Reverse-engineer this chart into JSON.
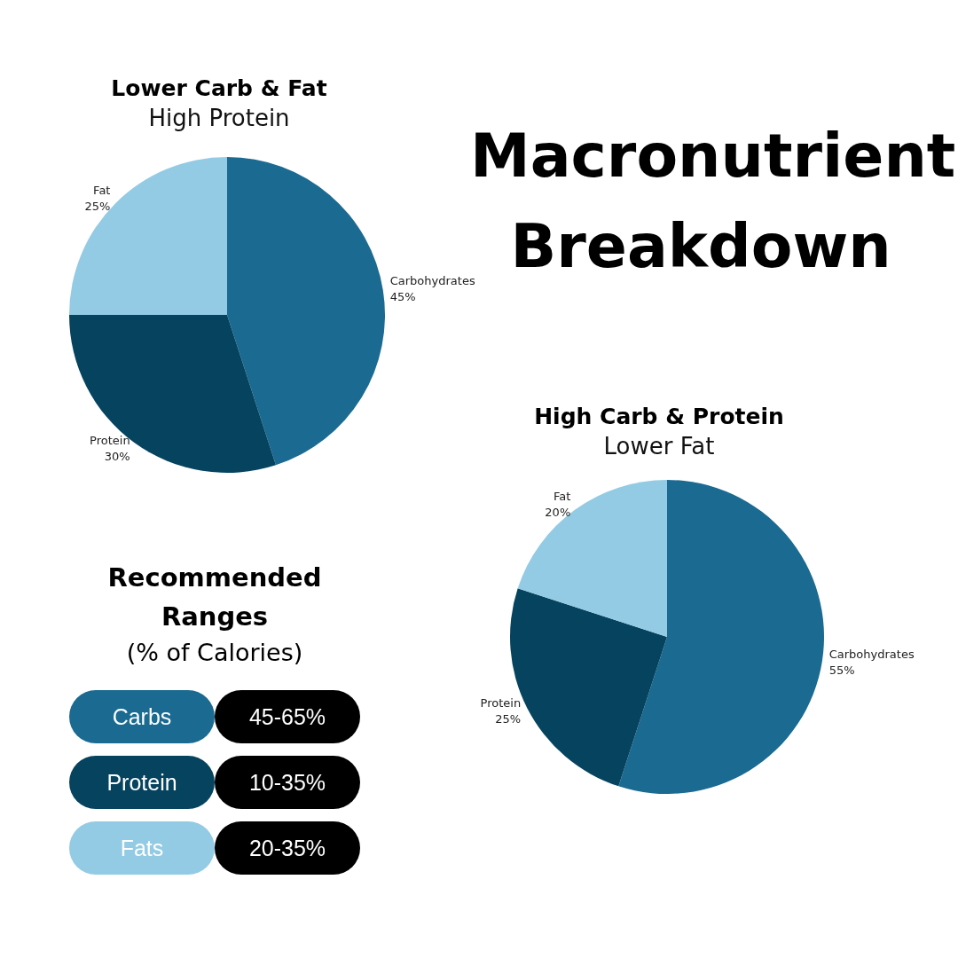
{
  "chart_data": [
    {
      "type": "pie",
      "title": "Lower Carb & Fat",
      "subtitle": "High Protein",
      "categories": [
        "Carbohydrates",
        "Protein",
        "Fat"
      ],
      "values": [
        45,
        30,
        25
      ],
      "value_labels": [
        "45%",
        "30%",
        "25%"
      ],
      "colors": [
        "#1b6a91",
        "#06435f",
        "#93cbe4"
      ],
      "legend": false
    },
    {
      "type": "other",
      "title": "Macronutrient Breakdown"
    },
    {
      "type": "other",
      "title": "Recommended Ranges",
      "subtitle": "(% of Calories)",
      "categories": [
        "Carbs",
        "Protein",
        "Fats"
      ],
      "colors": [
        "#1b6a91",
        "#06435f",
        "#93cbe4"
      ],
      "annotations": [
        "45-65%",
        "10-35%",
        "20-35%"
      ]
    },
    {
      "type": "pie",
      "title": "High Carb & Protein",
      "subtitle": "Lower Fat",
      "categories": [
        "Carbohydrates",
        "Protein",
        "Fat"
      ],
      "values": [
        55,
        25,
        20
      ],
      "value_labels": [
        "55%",
        "25%",
        "20%"
      ],
      "colors": [
        "#1b6a91",
        "#06435f",
        "#93cbe4"
      ],
      "legend": false
    }
  ]
}
